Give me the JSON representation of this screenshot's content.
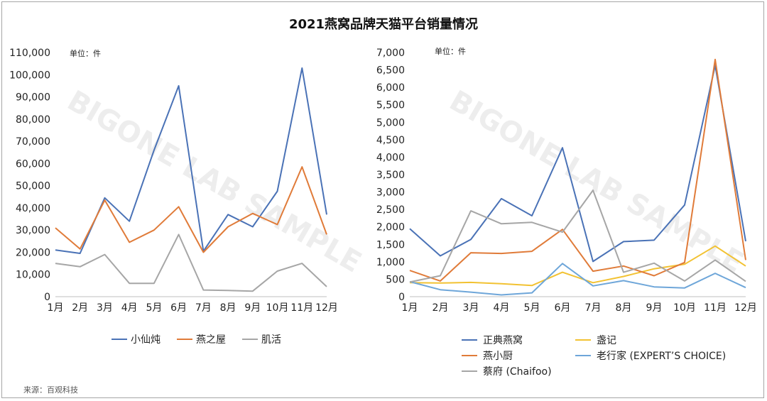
{
  "title": "2021燕窝品牌天猫平台销量情况",
  "source": "来源：百观科技",
  "watermark": "BIGONE LAB SAMPLE",
  "chart_data": [
    {
      "type": "line",
      "unit_label": "单位：件",
      "categories": [
        "1月",
        "2月",
        "3月",
        "4月",
        "5月",
        "6月",
        "7月",
        "8月",
        "9月",
        "10月",
        "11月",
        "12月"
      ],
      "ylim": [
        0,
        110000
      ],
      "yticks": [
        0,
        10000,
        20000,
        30000,
        40000,
        50000,
        60000,
        70000,
        80000,
        90000,
        100000,
        110000
      ],
      "ytick_labels": [
        "0",
        "10,000",
        "20,000",
        "30,000",
        "40,000",
        "50,000",
        "60,000",
        "70,000",
        "80,000",
        "90,000",
        "100,000",
        "110,000"
      ],
      "grid": false,
      "legend_position": "bottom",
      "series": [
        {
          "name": "小仙炖",
          "color": "#4a72b6",
          "values": [
            21000,
            19500,
            44500,
            34000,
            66000,
            95000,
            20500,
            37000,
            31500,
            47500,
            103000,
            37000
          ]
        },
        {
          "name": "燕之屋",
          "color": "#e07b39",
          "values": [
            31000,
            21500,
            43500,
            24500,
            30000,
            40500,
            20000,
            31500,
            37500,
            32500,
            58500,
            28000
          ]
        },
        {
          "name": "肌活",
          "color": "#a6a6a6",
          "values": [
            15000,
            13500,
            19000,
            6000,
            6000,
            28000,
            3000,
            2800,
            2500,
            11500,
            15000,
            4500
          ]
        }
      ]
    },
    {
      "type": "line",
      "unit_label": "单位：件",
      "categories": [
        "1月",
        "2月",
        "3月",
        "4月",
        "5月",
        "6月",
        "7月",
        "8月",
        "9月",
        "10月",
        "11月",
        "12月"
      ],
      "ylim": [
        0,
        7000
      ],
      "yticks": [
        0,
        500,
        1000,
        1500,
        2000,
        2500,
        3000,
        3500,
        4000,
        4500,
        5000,
        5500,
        6000,
        6500,
        7000
      ],
      "ytick_labels": [
        "0",
        "500",
        "1,000",
        "1,500",
        "2,000",
        "2,500",
        "3,000",
        "3,500",
        "4,000",
        "4,500",
        "5,000",
        "5,500",
        "6,000",
        "6,500",
        "7,000"
      ],
      "grid": false,
      "legend_position": "bottom",
      "series": [
        {
          "name": "正典燕窝",
          "color": "#4a72b6",
          "values": [
            1950,
            1170,
            1640,
            2810,
            2320,
            4270,
            1010,
            1580,
            1620,
            2630,
            6630,
            1590
          ]
        },
        {
          "name": "盏记",
          "color": "#f2c232",
          "values": [
            400,
            390,
            410,
            370,
            320,
            700,
            400,
            580,
            800,
            930,
            1450,
            880
          ]
        },
        {
          "name": "燕小厨",
          "color": "#e07b39",
          "values": [
            750,
            450,
            1260,
            1240,
            1300,
            1930,
            730,
            880,
            600,
            980,
            6800,
            1050
          ]
        },
        {
          "name": "老行家 (EXPERT’S CHOICE)",
          "color": "#6ea6d9",
          "values": [
            430,
            200,
            130,
            50,
            110,
            950,
            310,
            460,
            280,
            250,
            670,
            260
          ]
        },
        {
          "name": "蔡府 (Chaifoo)",
          "color": "#a6a6a6",
          "values": [
            420,
            600,
            2460,
            2090,
            2130,
            1850,
            3050,
            700,
            960,
            450,
            1050,
            440
          ]
        }
      ]
    }
  ]
}
